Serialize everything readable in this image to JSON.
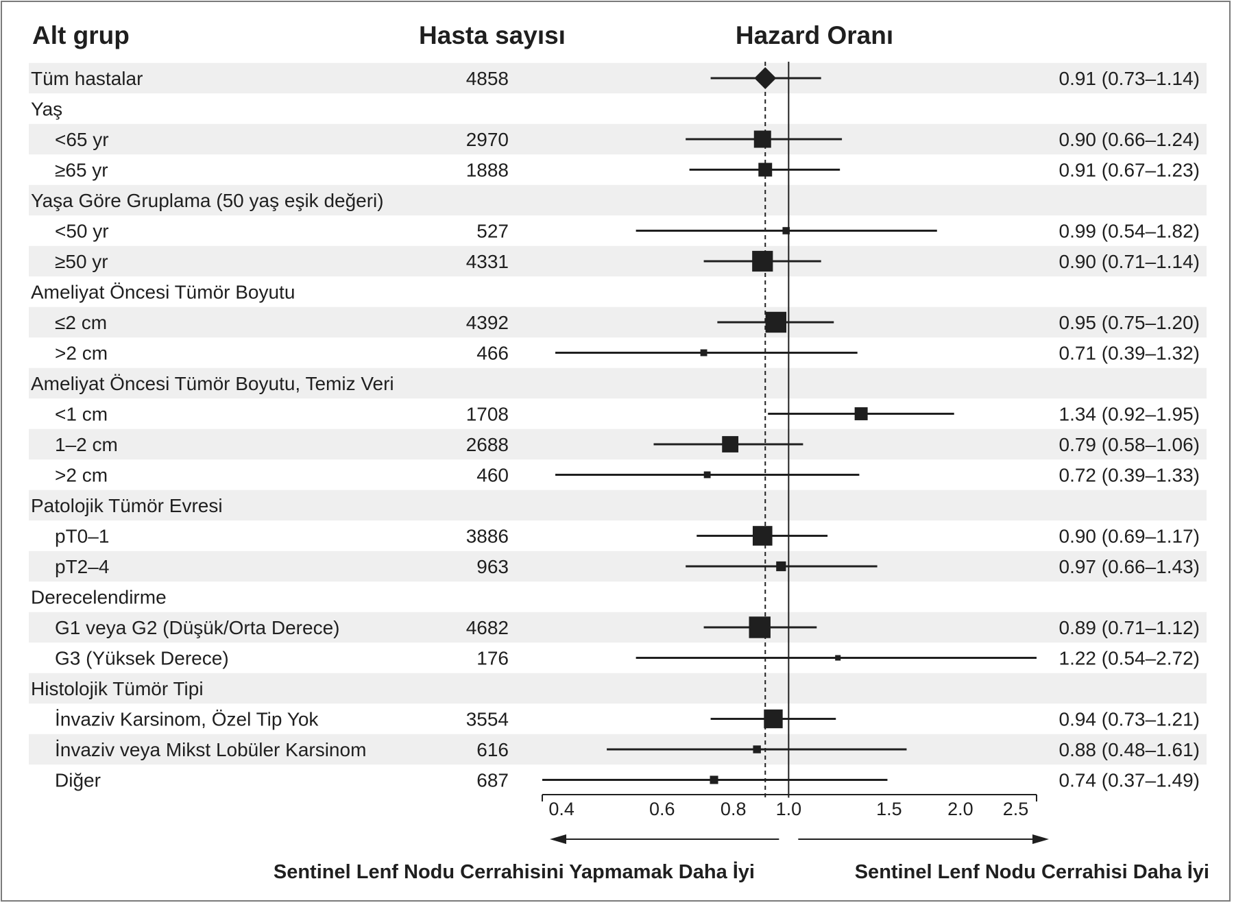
{
  "headers": {
    "subgroup": "Alt grup",
    "patients": "Hasta sayısı",
    "hazard": "Hazard Oranı"
  },
  "footer": {
    "left": "Sentinel Lenf Nodu Cerrahisini Yapmamak Daha İyi",
    "right": "Sentinel Lenf Nodu Cerrahisi Daha İyi"
  },
  "colors": {
    "band": "#efefef",
    "ink": "#1f1f1f",
    "frame": "#7a7a7a"
  },
  "chart_data": {
    "type": "forest",
    "scale": "log",
    "xlim": [
      0.37,
      2.72
    ],
    "reference_line": 1.0,
    "overall_line": 0.91,
    "x_ticks": [
      {
        "value": 0.4,
        "label": "0.4"
      },
      {
        "value": 0.6,
        "label": "0.6"
      },
      {
        "value": 0.8,
        "label": "0.8"
      },
      {
        "value": 1.0,
        "label": "1.0"
      },
      {
        "value": 1.5,
        "label": "1.5"
      },
      {
        "value": 2.0,
        "label": "2.0"
      },
      {
        "value": 2.5,
        "label": "2.5"
      }
    ],
    "rows": [
      {
        "label": "Tüm hastalar",
        "indent": false,
        "header": false,
        "n": "4858",
        "hr": 0.91,
        "lo": 0.73,
        "hi": 1.14,
        "ci_text": "0.91 (0.73–1.14)",
        "marker": "diamond"
      },
      {
        "label": "Yaş",
        "indent": false,
        "header": true
      },
      {
        "label": "<65 yr",
        "indent": true,
        "header": false,
        "n": "2970",
        "hr": 0.9,
        "lo": 0.66,
        "hi": 1.24,
        "ci_text": "0.90 (0.66–1.24)"
      },
      {
        "label": "≥65 yr",
        "indent": true,
        "header": false,
        "n": "1888",
        "hr": 0.91,
        "lo": 0.67,
        "hi": 1.23,
        "ci_text": "0.91 (0.67–1.23)"
      },
      {
        "label": "Yaşa Göre Gruplama (50 yaş eşik değeri)",
        "indent": false,
        "header": true
      },
      {
        "label": "<50 yr",
        "indent": true,
        "header": false,
        "n": "527",
        "hr": 0.99,
        "lo": 0.54,
        "hi": 1.82,
        "ci_text": "0.99 (0.54–1.82)"
      },
      {
        "label": "≥50 yr",
        "indent": true,
        "header": false,
        "n": "4331",
        "hr": 0.9,
        "lo": 0.71,
        "hi": 1.14,
        "ci_text": "0.90 (0.71–1.14)"
      },
      {
        "label": "Ameliyat Öncesi Tümör Boyutu",
        "indent": false,
        "header": true
      },
      {
        "label": "≤2 cm",
        "indent": true,
        "header": false,
        "n": "4392",
        "hr": 0.95,
        "lo": 0.75,
        "hi": 1.2,
        "ci_text": "0.95 (0.75–1.20)"
      },
      {
        "label": ">2 cm",
        "indent": true,
        "header": false,
        "n": "466",
        "hr": 0.71,
        "lo": 0.39,
        "hi": 1.32,
        "ci_text": "0.71 (0.39–1.32)"
      },
      {
        "label": "Ameliyat Öncesi Tümör Boyutu, Temiz Veri",
        "indent": false,
        "header": true
      },
      {
        "label": "<1 cm",
        "indent": true,
        "header": false,
        "n": "1708",
        "hr": 1.34,
        "lo": 0.92,
        "hi": 1.95,
        "ci_text": "1.34 (0.92–1.95)"
      },
      {
        "label": "1–2 cm",
        "indent": true,
        "header": false,
        "n": "2688",
        "hr": 0.79,
        "lo": 0.58,
        "hi": 1.06,
        "ci_text": "0.79 (0.58–1.06)"
      },
      {
        "label": ">2 cm",
        "indent": true,
        "header": false,
        "n": "460",
        "hr": 0.72,
        "lo": 0.39,
        "hi": 1.33,
        "ci_text": "0.72 (0.39–1.33)"
      },
      {
        "label": "Patolojik Tümör Evresi",
        "indent": false,
        "header": true
      },
      {
        "label": "pT0–1",
        "indent": true,
        "header": false,
        "n": "3886",
        "hr": 0.9,
        "lo": 0.69,
        "hi": 1.17,
        "ci_text": "0.90 (0.69–1.17)"
      },
      {
        "label": "pT2–4",
        "indent": true,
        "header": false,
        "n": "963",
        "hr": 0.97,
        "lo": 0.66,
        "hi": 1.43,
        "ci_text": "0.97 (0.66–1.43)"
      },
      {
        "label": "Derecelendirme",
        "indent": false,
        "header": true
      },
      {
        "label": "G1 veya G2 (Düşük/Orta Derece)",
        "indent": true,
        "header": false,
        "n": "4682",
        "hr": 0.89,
        "lo": 0.71,
        "hi": 1.12,
        "ci_text": "0.89 (0.71–1.12)"
      },
      {
        "label": "G3 (Yüksek Derece)",
        "indent": true,
        "header": false,
        "n": "176",
        "hr": 1.22,
        "lo": 0.54,
        "hi": 2.72,
        "ci_text": "1.22 (0.54–2.72)"
      },
      {
        "label": "Histolojik Tümör Tipi",
        "indent": false,
        "header": true
      },
      {
        "label": "İnvaziv Karsinom, Özel Tip Yok",
        "indent": true,
        "header": false,
        "n": "3554",
        "hr": 0.94,
        "lo": 0.73,
        "hi": 1.21,
        "ci_text": "0.94 (0.73–1.21)"
      },
      {
        "label": "İnvaziv veya Mikst Lobüler Karsinom",
        "indent": true,
        "header": false,
        "n": "616",
        "hr": 0.88,
        "lo": 0.48,
        "hi": 1.61,
        "ci_text": "0.88 (0.48–1.61)"
      },
      {
        "label": "Diğer",
        "indent": true,
        "header": false,
        "n": "687",
        "hr": 0.74,
        "lo": 0.37,
        "hi": 1.49,
        "ci_text": "0.74 (0.37–1.49)"
      }
    ]
  }
}
